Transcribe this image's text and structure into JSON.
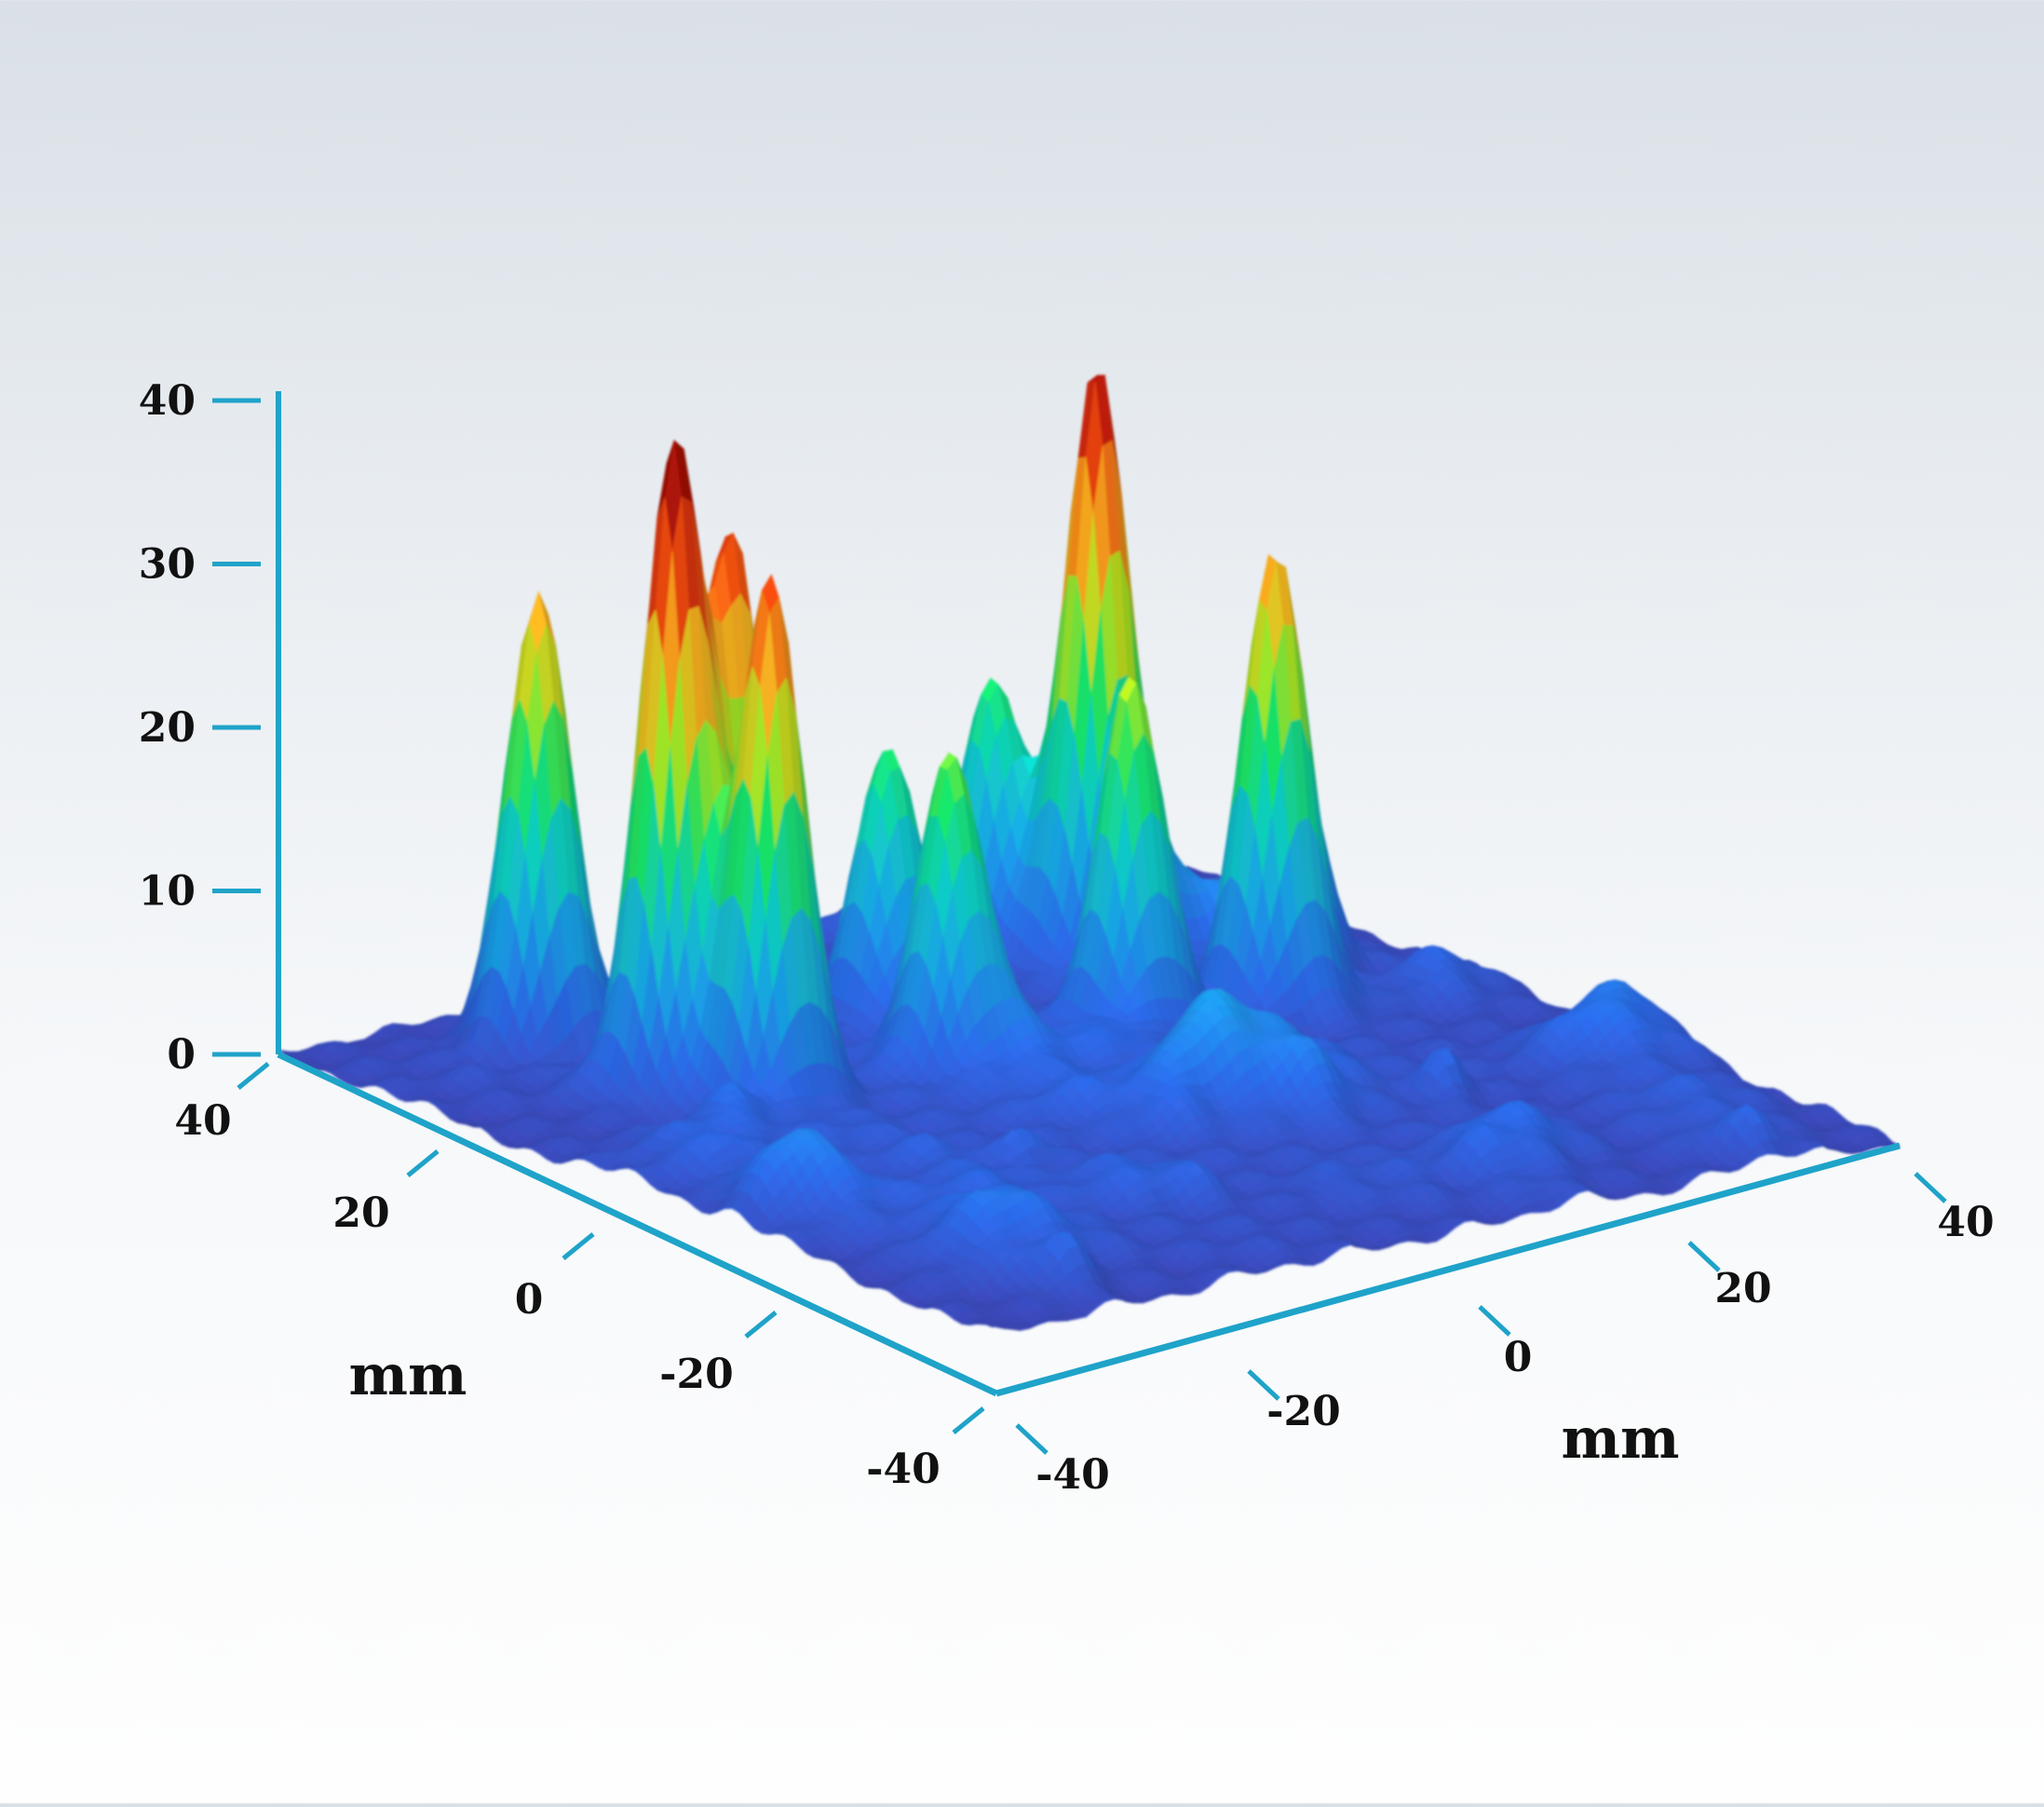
{
  "chart_data": {
    "type": "surface",
    "title": "",
    "colors": {
      "axis": "#1fa3c9",
      "colormap": [
        "#3c3ca4",
        "#2a66e0",
        "#1aa3ea",
        "#10d3c8",
        "#16ea6a",
        "#b8ee22",
        "#ffbb22",
        "#ff5a10",
        "#c41508",
        "#8a0d04"
      ]
    },
    "z_axis": {
      "ticks": [
        "40",
        "30",
        "20",
        "10",
        "0"
      ],
      "range": [
        0,
        40
      ]
    },
    "y_axis": {
      "label": "mm",
      "ticks": [
        "40",
        "20",
        "0",
        "-20",
        "-40"
      ],
      "range": [
        -40,
        40
      ]
    },
    "x_axis": {
      "label": "mm",
      "ticks": [
        "-40",
        "-20",
        "0",
        "20",
        "40"
      ],
      "range": [
        -40,
        40
      ]
    },
    "peaks": [
      {
        "x": -24,
        "y": 16,
        "z": 38
      },
      {
        "x": -21,
        "y": 9,
        "z": 32
      },
      {
        "x": -18,
        "y": 17,
        "z": 31
      },
      {
        "x": -25,
        "y": 30,
        "z": 28
      },
      {
        "x": -16,
        "y": 24,
        "z": 26
      },
      {
        "x": 18,
        "y": 22,
        "z": 32
      },
      {
        "x": 22,
        "y": 7,
        "z": 25
      },
      {
        "x": 10,
        "y": 8,
        "z": 21
      },
      {
        "x": -6,
        "y": 8,
        "z": 18
      },
      {
        "x": -2,
        "y": 20,
        "z": 16
      },
      {
        "x": 29,
        "y": 15,
        "z": 15
      },
      {
        "x": 14,
        "y": 29,
        "z": 14
      }
    ]
  }
}
